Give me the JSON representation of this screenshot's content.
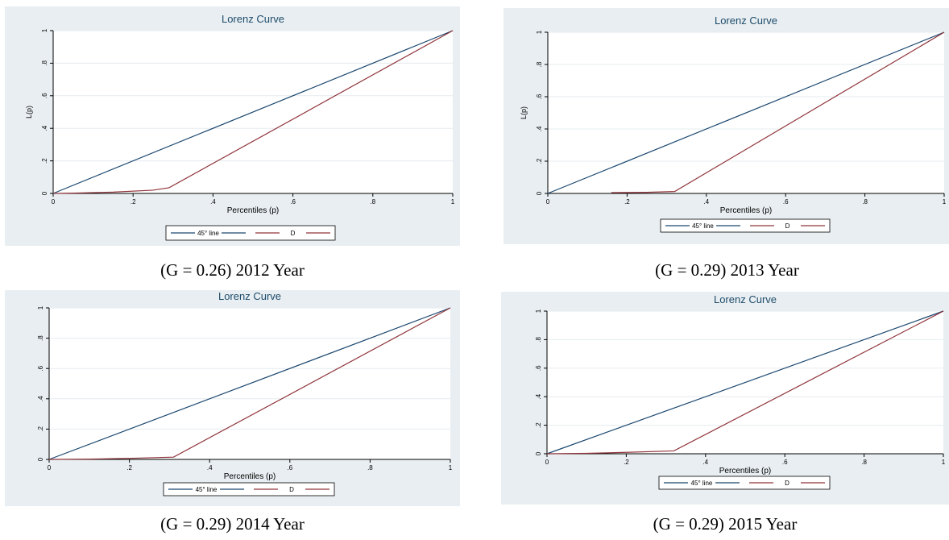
{
  "colors": {
    "background": "#e8eef1",
    "plot_area": "#ffffff",
    "grid": "#e6ecef",
    "title": "#1e4c6b",
    "line_45": "#1a476f",
    "line_D": "#90353b"
  },
  "chart_data": [
    {
      "type": "line",
      "title": "Lorenz Curve",
      "xlabel": "Percentiles (p)",
      "ylabel": "L(p)",
      "xlim": [
        0,
        1
      ],
      "ylim": [
        0,
        1
      ],
      "x_ticks": [
        "0",
        ".2",
        ".4",
        ".6",
        ".8",
        "1"
      ],
      "y_ticks": [
        "0",
        ".2",
        ".4",
        ".6",
        ".8",
        "1"
      ],
      "grid": true,
      "legend_position": "bottom",
      "series": [
        {
          "name": "45° line",
          "x": [
            0,
            1
          ],
          "y": [
            0,
            1
          ]
        },
        {
          "name": "D",
          "x": [
            0,
            0.05,
            0.15,
            0.25,
            0.29,
            1
          ],
          "y": [
            0,
            0.002,
            0.008,
            0.02,
            0.035,
            1
          ]
        }
      ],
      "caption": "(G = 0.26) 2012 Year"
    },
    {
      "type": "line",
      "title": "Lorenz Curve",
      "xlabel": "Percentiles (p)",
      "ylabel": "L(p)",
      "xlim": [
        0,
        1
      ],
      "ylim": [
        0,
        1
      ],
      "x_ticks": [
        "0",
        ".2",
        ".4",
        ".6",
        ".8",
        "1"
      ],
      "y_ticks": [
        "0",
        ".2",
        ".4",
        ".6",
        ".8",
        "1"
      ],
      "grid": true,
      "legend_position": "bottom",
      "series": [
        {
          "name": "45° line",
          "x": [
            0,
            1
          ],
          "y": [
            0,
            1
          ]
        },
        {
          "name": "D",
          "x": [
            0.16,
            0.25,
            0.32,
            1
          ],
          "y": [
            0.005,
            0.007,
            0.012,
            1
          ]
        }
      ],
      "caption": "(G = 0.29) 2013 Year"
    },
    {
      "type": "line",
      "title": "Lorenz Curve",
      "xlabel": "Percentiles (p)",
      "ylabel": "",
      "xlim": [
        0,
        1
      ],
      "ylim": [
        0,
        1
      ],
      "x_ticks": [
        "0",
        ".2",
        ".4",
        ".6",
        ".8",
        "1"
      ],
      "y_ticks": [
        "0",
        ".2",
        ".4",
        ".6",
        ".8",
        "1"
      ],
      "grid": true,
      "legend_position": "bottom",
      "series": [
        {
          "name": "45° line",
          "x": [
            0,
            1
          ],
          "y": [
            0,
            1
          ]
        },
        {
          "name": "D",
          "x": [
            0,
            0.1,
            0.2,
            0.31,
            1
          ],
          "y": [
            0,
            0.002,
            0.007,
            0.015,
            1
          ]
        }
      ],
      "caption": "(G = 0.29) 2014 Year"
    },
    {
      "type": "line",
      "title": "Lorenz Curve",
      "xlabel": "Percentiles (p)",
      "ylabel": "",
      "xlim": [
        0,
        1
      ],
      "ylim": [
        0,
        1
      ],
      "x_ticks": [
        "0",
        ".2",
        ".4",
        ".6",
        ".8",
        "1"
      ],
      "y_ticks": [
        "0",
        ".2",
        ".4",
        ".6",
        ".8",
        "1"
      ],
      "grid": true,
      "legend_position": "bottom",
      "series": [
        {
          "name": "45° line",
          "x": [
            0,
            1
          ],
          "y": [
            0,
            1
          ]
        },
        {
          "name": "D",
          "x": [
            0,
            0.1,
            0.2,
            0.32,
            1
          ],
          "y": [
            0,
            0.003,
            0.01,
            0.02,
            1
          ]
        }
      ],
      "caption": "(G = 0.29) 2015 Year"
    }
  ]
}
